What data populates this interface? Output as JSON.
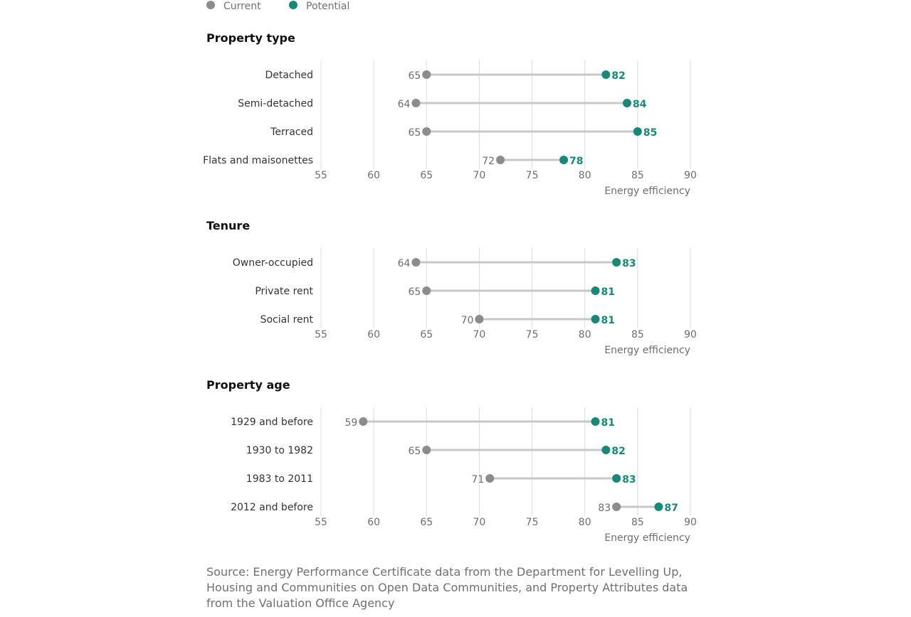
{
  "legend": {
    "items": [
      {
        "label": "Current",
        "color": "#8c8c8c"
      },
      {
        "label": "Potential",
        "color": "#168a78"
      }
    ]
  },
  "source": "Source: Energy Performance Certificate data from the Department for Levelling Up, Housing and Communities on Open Data Communities, and Property Attributes data from the Valuation Office Agency",
  "colors": {
    "current": "#8c8c8c",
    "potential": "#168a78",
    "connector": "#c8c8c8",
    "grid": "#dcdcdc",
    "tick": "#6e6e6e"
  },
  "chart_data": [
    {
      "type": "dumbbell",
      "title": "Property type",
      "xlabel": "Energy efficiency",
      "xlim": [
        55,
        90
      ],
      "xticks": [
        55,
        60,
        65,
        70,
        75,
        80,
        85,
        90
      ],
      "grid": true,
      "categories": [
        "Detached",
        "Semi-detached",
        "Terraced",
        "Flats and maisonettes"
      ],
      "series": [
        {
          "name": "Current",
          "values": [
            65,
            64,
            65,
            72
          ]
        },
        {
          "name": "Potential",
          "values": [
            82,
            84,
            85,
            78
          ]
        }
      ]
    },
    {
      "type": "dumbbell",
      "title": "Tenure",
      "xlabel": "Energy efficiency",
      "xlim": [
        55,
        90
      ],
      "xticks": [
        55,
        60,
        65,
        70,
        75,
        80,
        85,
        90
      ],
      "grid": true,
      "categories": [
        "Owner-occupied",
        "Private rent",
        "Social rent"
      ],
      "series": [
        {
          "name": "Current",
          "values": [
            64,
            65,
            70
          ]
        },
        {
          "name": "Potential",
          "values": [
            83,
            81,
            81
          ]
        }
      ]
    },
    {
      "type": "dumbbell",
      "title": "Property age",
      "xlabel": "Energy efficiency",
      "xlim": [
        55,
        90
      ],
      "xticks": [
        55,
        60,
        65,
        70,
        75,
        80,
        85,
        90
      ],
      "grid": true,
      "categories": [
        "1929 and before",
        "1930 to 1982",
        "1983 to 2011",
        "2012 and before"
      ],
      "series": [
        {
          "name": "Current",
          "values": [
            59,
            65,
            71,
            83
          ]
        },
        {
          "name": "Potential",
          "values": [
            81,
            82,
            83,
            87
          ]
        }
      ]
    }
  ]
}
